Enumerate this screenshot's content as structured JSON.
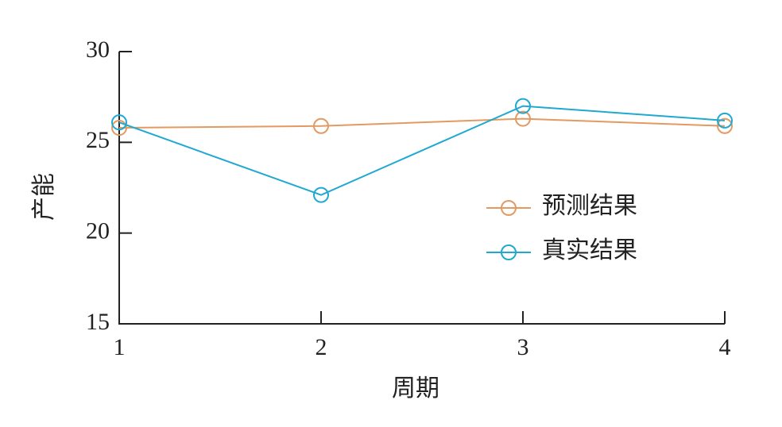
{
  "chart_data": {
    "type": "line",
    "x": [
      1,
      2,
      3,
      4
    ],
    "series": [
      {
        "name": "预测结果",
        "color": "#e39a62",
        "values": [
          25.8,
          25.9,
          26.3,
          25.9
        ]
      },
      {
        "name": "真实结果",
        "color": "#1fa9d1",
        "values": [
          26.1,
          22.1,
          27.0,
          26.2
        ]
      }
    ],
    "xlabel": "周期",
    "ylabel": "产能",
    "xlim": [
      1,
      4
    ],
    "xticks": [
      1,
      2,
      3,
      4
    ],
    "ylim": [
      15,
      30
    ],
    "yticks": [
      15,
      20,
      25,
      30
    ],
    "legend": "right"
  }
}
